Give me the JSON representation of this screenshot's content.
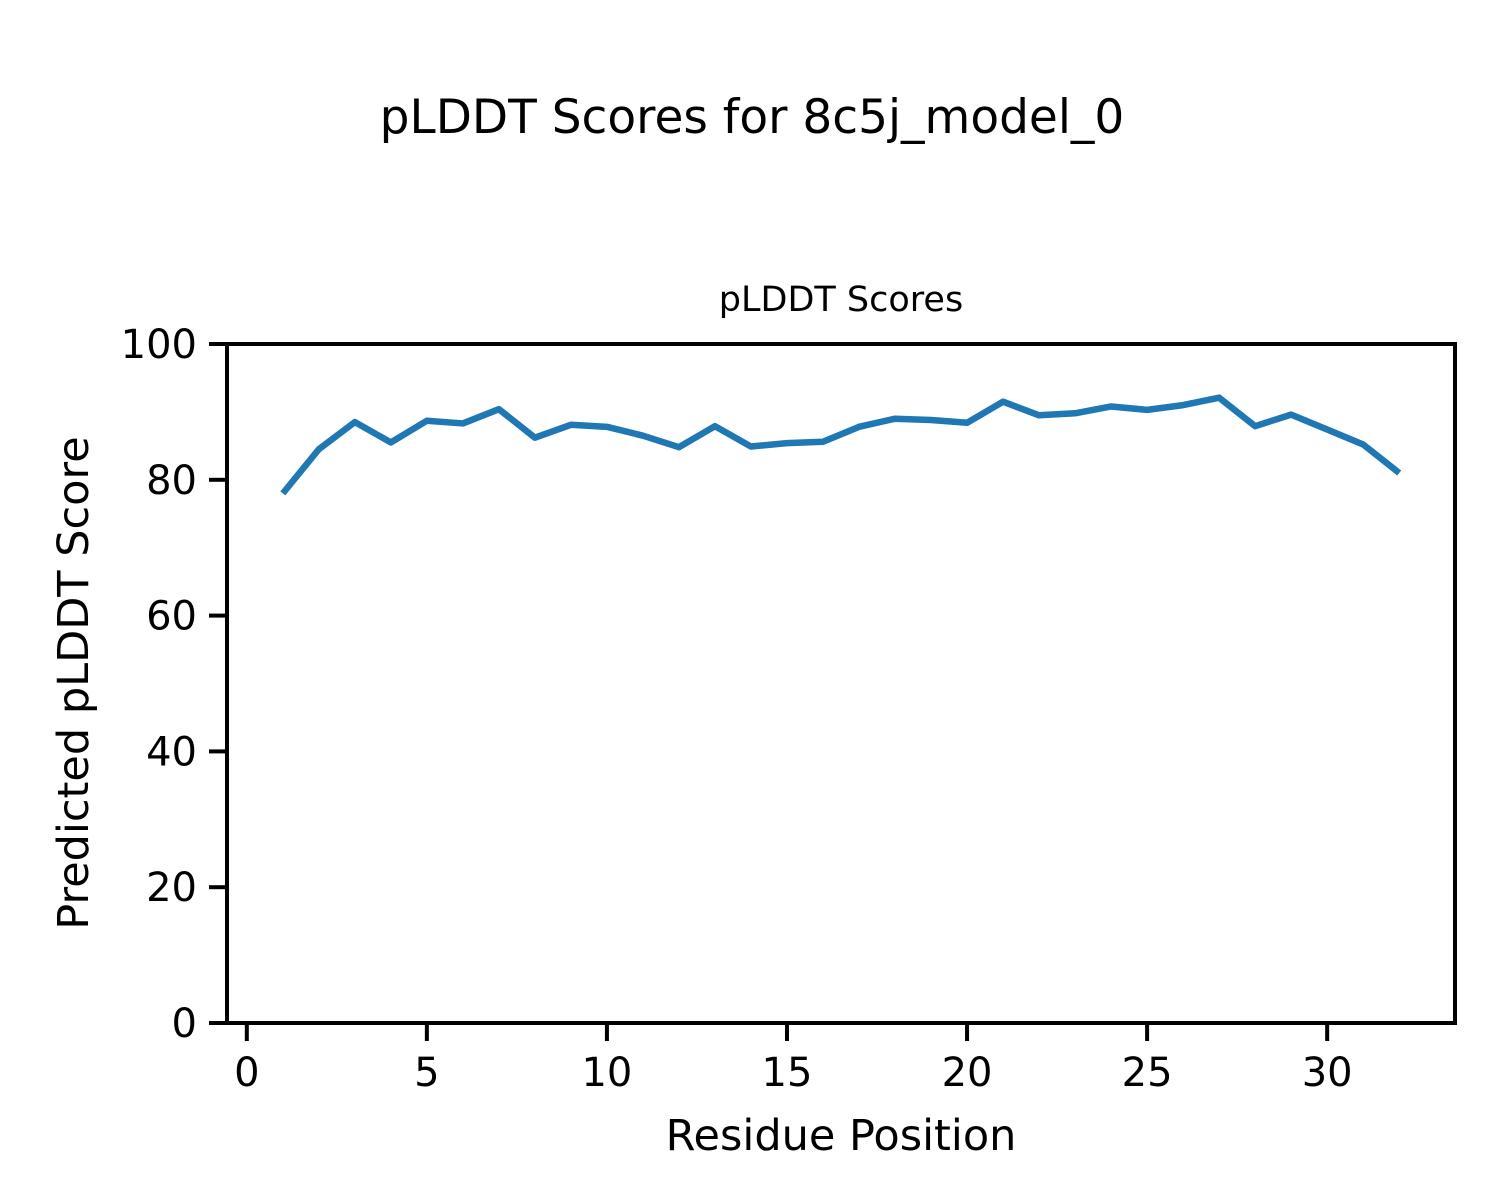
{
  "figure": {
    "suptitle": "pLDDT Scores for 8c5j_model_0",
    "background": "#ffffff"
  },
  "chart_data": {
    "type": "line",
    "title": "pLDDT Scores",
    "xlabel": "Residue Position",
    "ylabel": "Predicted pLDDT Score",
    "x": [
      1,
      2,
      3,
      4,
      5,
      6,
      7,
      8,
      9,
      10,
      11,
      12,
      13,
      14,
      15,
      16,
      17,
      18,
      19,
      20,
      21,
      22,
      23,
      24,
      25,
      26,
      27,
      28,
      29,
      30,
      31,
      32
    ],
    "y": [
      78.0,
      84.5,
      88.5,
      85.5,
      88.7,
      88.3,
      90.4,
      86.2,
      88.1,
      87.8,
      86.5,
      84.8,
      87.9,
      84.9,
      85.4,
      85.6,
      87.8,
      89.0,
      88.8,
      88.4,
      91.5,
      89.5,
      89.8,
      90.8,
      90.3,
      91.0,
      92.1,
      87.9,
      89.6,
      87.4,
      85.2,
      81.0
    ],
    "xlim": [
      -0.55,
      33.55
    ],
    "ylim": [
      0,
      100
    ],
    "xticks": [
      0,
      5,
      10,
      15,
      20,
      25,
      30
    ],
    "yticks": [
      0,
      20,
      40,
      60,
      80,
      100
    ],
    "grid": false,
    "legend": "none",
    "line_color": "#1f77b4",
    "line_width": 6.5,
    "axis_color": "#000000"
  }
}
